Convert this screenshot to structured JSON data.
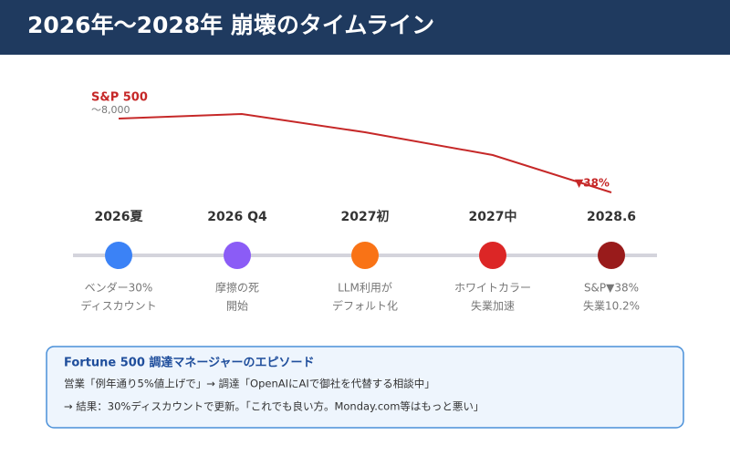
{
  "header": {
    "title": "2026年〜2028年 崩壊のタイムライン"
  },
  "sp500": {
    "label": "S&P 500",
    "start": "〜8,000",
    "end": "▼38%"
  },
  "timeline": [
    {
      "date": "2026夏",
      "color": "#3b82f6",
      "lines": [
        "ベンダー30%",
        "ディスカウント"
      ]
    },
    {
      "date": "2026 Q4",
      "color": "#8b5cf6",
      "lines": [
        "摩擦の死",
        "開始"
      ]
    },
    {
      "date": "2027初",
      "color": "#f97316",
      "lines": [
        "LLM利用が",
        "デフォルト化"
      ]
    },
    {
      "date": "2027中",
      "color": "#dc2626",
      "lines": [
        "ホワイトカラー",
        "失業加速"
      ]
    },
    {
      "date": "2028.6",
      "color": "#991b1b",
      "lines": [
        "S&P▼38%",
        "失業10.2%"
      ]
    }
  ],
  "episode": {
    "title": "Fortune 500 調達マネージャーのエピソード",
    "lines": [
      "営業「例年通り5%値上げで」→ 調達「OpenAIにAIで御社を代替する相談中」",
      "→ 結果：30%ディスカウントで更新。「これでも良い方。Monday.com等はもっと悪い」"
    ]
  }
}
